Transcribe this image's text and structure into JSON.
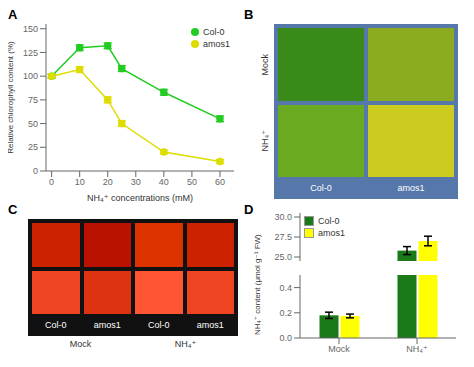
{
  "chart_data": [
    {
      "type": "line",
      "title": "A",
      "x_label": "NH₄⁺ concentrations (mM)",
      "y_label": "Relative chlorophyll content (%)",
      "x": [
        0,
        10,
        20,
        25,
        40,
        60
      ],
      "series": [
        {
          "name": "Col-0",
          "color": "#22cc22",
          "values": [
            100,
            130,
            132,
            108,
            83,
            55
          ],
          "errors": [
            2,
            3,
            3,
            3,
            3,
            3
          ]
        },
        {
          "name": "amos1",
          "color": "#dddd00",
          "values": [
            100,
            107,
            75,
            50,
            20,
            10
          ],
          "errors": [
            2,
            3,
            3,
            3,
            2,
            2
          ]
        }
      ],
      "xlim": [
        -2,
        65
      ],
      "ylim": [
        0,
        155
      ],
      "xticks": [
        0,
        10,
        20,
        30,
        40,
        50,
        60
      ],
      "yticks": [
        0,
        25,
        50,
        75,
        100,
        125,
        150
      ],
      "legend": "upper right"
    },
    {
      "type": "image_grid",
      "title": "B",
      "color": "#5577aa",
      "categories": [
        "Col-0",
        "amos1"
      ],
      "rows": [
        "Mock",
        "NH₄⁺"
      ],
      "cells": [
        [
          "#3a8a1a",
          "#8aaa20"
        ],
        [
          "#6aaa20",
          "#cccc20"
        ]
      ]
    },
    {
      "type": "image_grid",
      "title": "C",
      "color": "#111111",
      "categories": [
        "Col-0",
        "amos1",
        "Col-0",
        "amos1"
      ],
      "groups": [
        "Mock",
        "NH₄⁺"
      ],
      "cells": [
        [
          "#cc2200",
          "#bb1100",
          "#dd3300",
          "#cc2200"
        ],
        [
          "#ee4422",
          "#dd3311",
          "#ff5533",
          "#ee4422"
        ]
      ]
    },
    {
      "type": "bar",
      "title": "D",
      "y_label": "NH₄⁺ content (μmol g⁻¹ FW)",
      "categories": [
        "Mock",
        "NH₄⁺"
      ],
      "series": [
        {
          "name": "Col-0",
          "color": "#1a7a1a",
          "values": [
            0.18,
            25.8
          ],
          "errors": [
            0.025,
            0.5
          ]
        },
        {
          "name": "amos1",
          "color": "#ffff00",
          "values": [
            0.175,
            27.0
          ],
          "errors": [
            0.015,
            0.6
          ]
        }
      ],
      "ylim": [
        [
          0,
          0.5
        ],
        [
          24.5,
          30.5
        ]
      ],
      "yticks": [
        [
          {
            "value": 0,
            "label": "0.0"
          },
          0.2,
          0.4
        ],
        [
          {
            "value": 25,
            "label": "25.0"
          },
          27.5,
          {
            "value": 30,
            "label": "30.0"
          }
        ]
      ],
      "legend": "upper left"
    }
  ]
}
